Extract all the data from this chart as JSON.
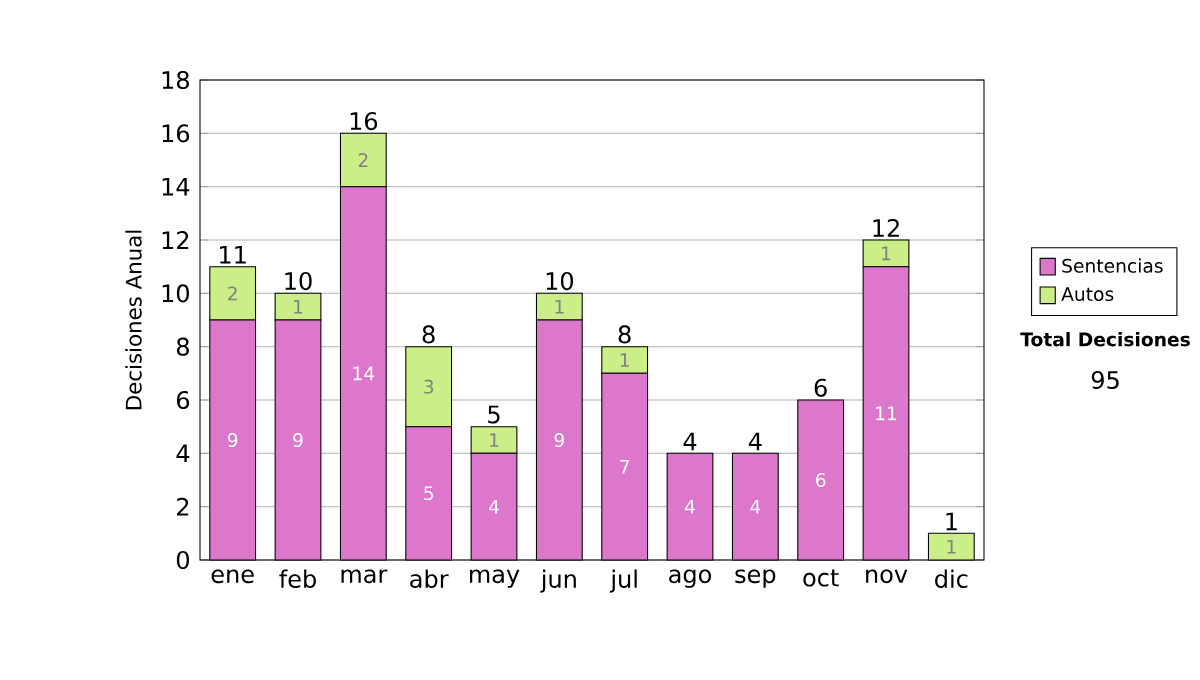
{
  "chart_data": {
    "type": "bar",
    "stacked": true,
    "ylabel": "Decisiones Anual",
    "categories": [
      "ene",
      "feb",
      "mar",
      "abr",
      "may",
      "jun",
      "jul",
      "ago",
      "sep",
      "oct",
      "nov",
      "dic"
    ],
    "series": [
      {
        "name": "Sentencias",
        "color": "#dd77cc",
        "values": [
          9,
          9,
          14,
          5,
          4,
          9,
          7,
          4,
          4,
          6,
          11,
          0
        ],
        "value_labels": [
          "9",
          "9",
          "14",
          "5",
          "4",
          "9",
          "7",
          "4",
          "4",
          "6",
          "11",
          null
        ]
      },
      {
        "name": "Autos",
        "color": "#ccee88",
        "values": [
          2,
          1,
          2,
          3,
          1,
          1,
          1,
          0,
          0,
          0,
          1,
          1
        ],
        "value_labels": [
          "2",
          "1",
          "2",
          "3",
          "1",
          "1",
          "1",
          null,
          null,
          null,
          "1",
          "1"
        ]
      }
    ],
    "totals": [
      "11",
      "10",
      "16",
      "8",
      "5",
      "10",
      "8",
      "4",
      "4",
      "6",
      "12",
      "1"
    ],
    "ylim": [
      0,
      18
    ],
    "yticks": [
      0,
      2,
      4,
      6,
      8,
      10,
      12,
      14,
      16,
      18
    ],
    "grid": "y",
    "legend": "right",
    "annotations": [
      "Total Decisiones",
      "95"
    ]
  }
}
